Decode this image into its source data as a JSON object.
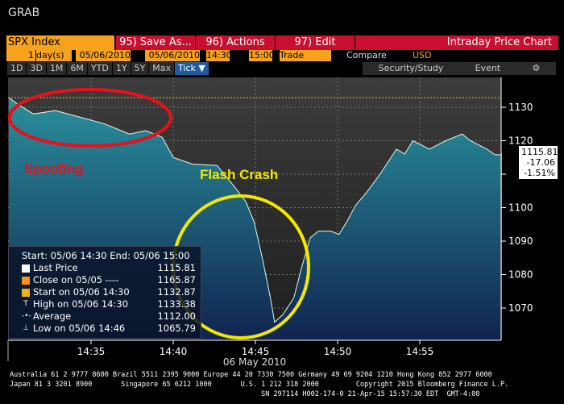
{
  "title": "GRAB",
  "toolbar": {
    "ticker": "SPX Index",
    "save": "95) Save As...",
    "actions": "96) Actions",
    "edit": "97) Edit",
    "chart_name": "Intraday Price Chart"
  },
  "params": {
    "count": "1",
    "unit": "day(s)",
    "start_date": "05/06/2010",
    "end_date": "05/06/2010",
    "start_time": "14:30",
    "end_time": "15:00",
    "mode": "Trade",
    "compare": "Compare",
    "currency": "USD"
  },
  "periods": [
    "1D",
    "3D",
    "1M",
    "6M",
    "YTD",
    "1Y",
    "5Y",
    "Max",
    "Tick ▼"
  ],
  "right_tools": {
    "security": "Security/Study",
    "event": "Event"
  },
  "legend": {
    "header": "Start: 05/06 14:30 End: 05/06 15:00",
    "rows": [
      {
        "label": "Last Price",
        "value": "1115.81",
        "color": "#ffffff"
      },
      {
        "label": "Close on 05/05 ----",
        "value": "1165.87",
        "color": "#f7931e"
      },
      {
        "label": "Start on 05/06 14:30",
        "value": "1132.87",
        "color": "#e8b51c"
      },
      {
        "label": "High on 05/06 14:30",
        "value": "1133.38",
        "color": ""
      },
      {
        "label": "Average",
        "value": "1112.00",
        "color": ""
      },
      {
        "label": "Low on 05/06 14:46",
        "value": "1065.79",
        "color": ""
      }
    ]
  },
  "last_box": {
    "price": "1115.81",
    "change": "-17.06",
    "pct": "-1.51%"
  },
  "annotations": {
    "spoofing": "Spoofing",
    "flash_crash": "Flash Crash"
  },
  "chart_data": {
    "type": "area",
    "xlabel": "06 May 2010",
    "xticks": [
      "14:35",
      "14:40",
      "14:45",
      "14:50",
      "14:55"
    ],
    "yticks": [
      1070,
      1080,
      1090,
      1100,
      1110,
      1120,
      1130
    ],
    "xlim": [
      "14:30",
      "15:00"
    ],
    "ylim": [
      1063,
      1139
    ],
    "start_line": 1132.87,
    "series": [
      {
        "x": [
          "14:30:00",
          "14:30:30",
          "14:31:30",
          "14:32:50",
          "14:34:20",
          "14:35:50",
          "14:37:20",
          "14:38:20",
          "14:39:20",
          "14:40:00",
          "14:41:10",
          "14:42:40",
          "14:43:40",
          "14:44:25",
          "14:44:55",
          "14:45:25",
          "14:45:55",
          "14:46:10",
          "14:46:40",
          "14:47:20",
          "14:47:50",
          "14:48:20",
          "14:48:50",
          "14:49:35",
          "14:50:05",
          "14:50:35",
          "14:51:05",
          "14:51:50",
          "14:52:35",
          "14:53:35",
          "14:54:05",
          "14:54:35",
          "14:55:35",
          "14:56:35",
          "14:57:35",
          "14:58:05",
          "14:59:05",
          "14:59:35",
          "15:00:00"
        ],
        "y": [
          1132.87,
          1131,
          1128,
          1129,
          1127,
          1125,
          1122,
          1123,
          1121,
          1115,
          1113,
          1112.6,
          1106.6,
          1101.8,
          1095.8,
          1085,
          1073,
          1065.79,
          1068,
          1073,
          1082.5,
          1091,
          1093,
          1093,
          1092,
          1096,
          1100.6,
          1105,
          1110,
          1117.5,
          1116,
          1120,
          1117.5,
          1120,
          1122,
          1120,
          1117.5,
          1115.8,
          1115.81
        ]
      }
    ]
  },
  "footer": {
    "line1": "Australia 61 2 9777 8600 Brazil 5511 2395 9000 Europe 44 20 7330 7500 Germany 49 69 9204 1210 Hong Kong 852 2977 6000",
    "line2": "Japan 81 3 3201 8900       Singapore 65 6212 1000       U.S. 1 212 318 2000         Copyright 2015 Bloomberg Finance L.P.",
    "line3": "                                                             SN 297114 H002-174-0 21-Apr-15 15:57:30 EDT  GMT-4:00"
  }
}
